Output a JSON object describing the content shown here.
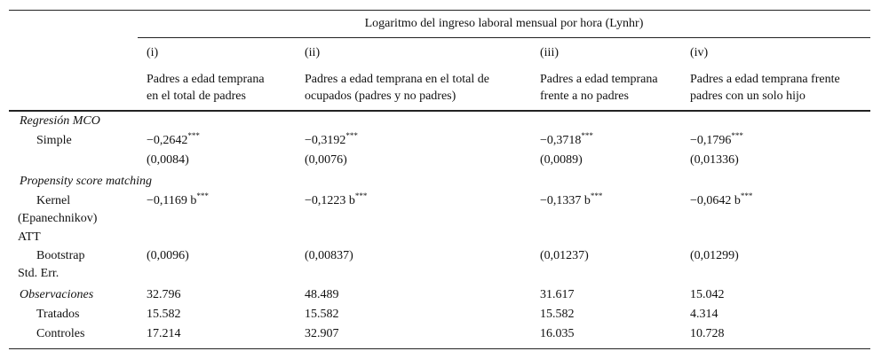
{
  "header": {
    "title": "Logaritmo del ingreso laboral mensual por hora (Lynhr)",
    "columns": [
      {
        "num": "(i)",
        "desc": [
          "Padres a edad temprana",
          "en el total de padres"
        ]
      },
      {
        "num": "(ii)",
        "desc": [
          "Padres a edad temprana en el total de",
          "ocupados (padres y no padres)"
        ]
      },
      {
        "num": "(iii)",
        "desc": [
          "Padres a edad temprana",
          "frente a no padres"
        ]
      },
      {
        "num": "(iv)",
        "desc": [
          "Padres a edad temprana frente",
          "padres con un solo hijo"
        ]
      }
    ]
  },
  "rows": [
    {
      "label": "Regresión MCO"
    },
    {
      "label": "Simple",
      "cells": [
        "−0,2642",
        "−0,3192",
        "−0,3718",
        "−0,1796"
      ],
      "sups": [
        "***",
        "***",
        "***",
        "***"
      ]
    },
    {
      "cells": [
        "(0,0084)",
        "(0,0076)",
        "(0,0089)",
        "(0,01336)"
      ]
    },
    {
      "label": "Propensity score matching"
    },
    {
      "label": "Kernel",
      "label2": "(Epanechnikov)",
      "cells": [
        "−0,1169 b",
        "−0,1223 b",
        "−0,1337 b",
        "−0,0642 b"
      ],
      "sups": [
        "***",
        "***",
        "***",
        "***"
      ]
    },
    {
      "label": "ATT"
    },
    {
      "label": "Bootstrap",
      "label2": "Std. Err.",
      "cells": [
        "(0,0096)",
        "(0,00837)",
        "(0,01237)",
        "(0,01299)"
      ]
    },
    {
      "label": "Observaciones",
      "cells": [
        "32.796",
        "48.489",
        "31.617",
        "15.042"
      ]
    },
    {
      "label": "Tratados",
      "cells": [
        "15.582",
        "15.582",
        "15.582",
        "4.314"
      ]
    },
    {
      "label": "Controles",
      "cells": [
        "17.214",
        "32.907",
        "16.035",
        "10.728"
      ]
    }
  ]
}
